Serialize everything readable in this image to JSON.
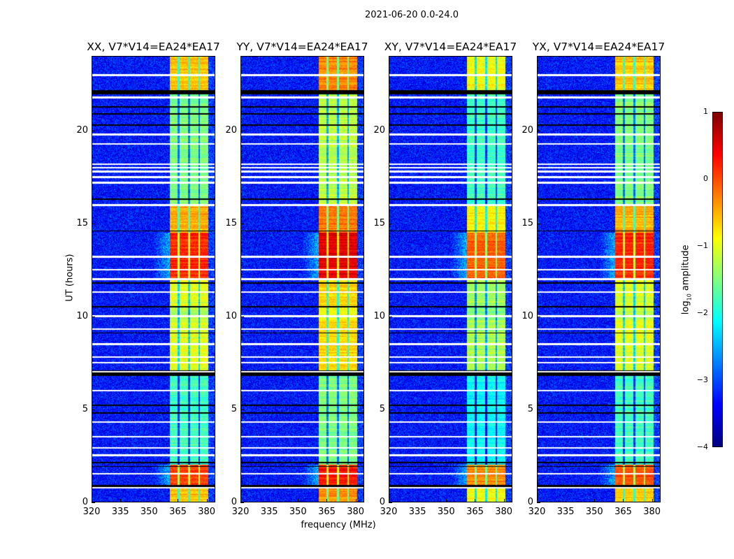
{
  "chart_data": {
    "type": "heatmap",
    "title": "2021-06-20 0.0-24.0",
    "xlabel": "frequency (MHz)",
    "ylabel": "UT (hours)",
    "xlim": [
      320,
      384.5
    ],
    "ylim": [
      0,
      24
    ],
    "xticks": [
      "320",
      "335",
      "350",
      "365",
      "380"
    ],
    "xtick_values": [
      320,
      335,
      350,
      365,
      380
    ],
    "yticks": [
      "0",
      "5",
      "10",
      "15",
      "20"
    ],
    "ytick_values": [
      0,
      5,
      10,
      15,
      20
    ],
    "colorbar": {
      "label_prefix": "log",
      "label_sub": "10",
      "label_suffix": " amplitude",
      "colormap": "jet",
      "range": [
        -4,
        1
      ],
      "ticks": [
        "1",
        "0",
        "−1",
        "−2",
        "−3",
        "−4"
      ],
      "tick_values": [
        1,
        0,
        -1,
        -2,
        -3,
        -4
      ]
    },
    "background_level": -3.3,
    "band_mhz": [
      361,
      381
    ],
    "subband_gaps_mhz": [
      365.5,
      371,
      376.3
    ],
    "time_segments": [
      {
        "from": 0.0,
        "to": 0.7,
        "level": -0.4
      },
      {
        "from": 0.9,
        "to": 2.0,
        "level": 0.2
      },
      {
        "from": 2.0,
        "to": 6.8,
        "level": -1.6
      },
      {
        "from": 7.1,
        "to": 9.8,
        "level": -0.8
      },
      {
        "from": 9.8,
        "to": 10.5,
        "level": -1.0
      },
      {
        "from": 10.5,
        "to": 12.0,
        "level": -0.8
      },
      {
        "from": 12.0,
        "to": 14.5,
        "level": 0.4
      },
      {
        "from": 14.5,
        "to": 16.0,
        "level": -0.3
      },
      {
        "from": 16.0,
        "to": 22.0,
        "level": -1.3
      },
      {
        "from": 22.2,
        "to": 24.0,
        "level": -0.4
      }
    ],
    "flagged_hours": [
      0.75,
      1.5,
      2.5,
      2.9,
      3.5,
      4.3,
      6.0,
      7.0,
      7.5,
      7.8,
      8.5,
      9.3,
      10.0,
      11.3,
      12.0,
      12.5,
      13.2,
      16.0,
      17.2,
      17.5,
      17.8,
      18.0,
      18.2,
      19.3,
      19.8,
      21.8,
      23.0
    ],
    "missing_hours": [
      1.9,
      2.1,
      4.8,
      5.2,
      6.8,
      9.1,
      10.5,
      11.8,
      14.6,
      16.3,
      20.3,
      20.9,
      21.3,
      22.0,
      22.1
    ],
    "panels": [
      {
        "title": "XX, V7*V14=EA24*EA17",
        "level_offset": -0.2
      },
      {
        "title": "YY, V7*V14=EA24*EA17",
        "level_offset": 0.1
      },
      {
        "title": "XY, V7*V14=EA24*EA17",
        "level_offset": -0.5
      },
      {
        "title": "YX, V7*V14=EA24*EA17",
        "level_offset": -0.2
      }
    ]
  }
}
